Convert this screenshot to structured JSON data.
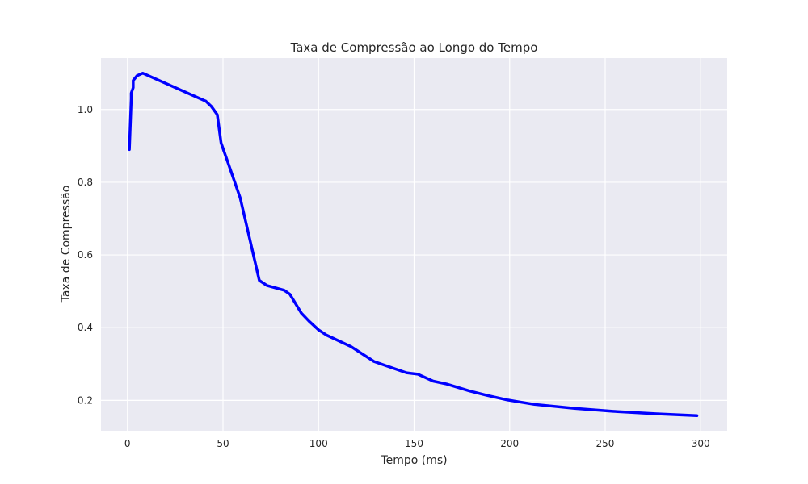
{
  "chart_data": {
    "type": "line",
    "title": "Taxa de Compressão ao Longo do Tempo",
    "xlabel": "Tempo (ms)",
    "ylabel": "Taxa de Compressão",
    "xlim": [
      -13.85,
      313.85
    ],
    "ylim": [
      0.1165,
      1.1415
    ],
    "xticks": [
      0,
      50,
      100,
      150,
      200,
      250,
      300
    ],
    "yticks": [
      0.2,
      0.4,
      0.6,
      0.8,
      1.0
    ],
    "xtick_labels": [
      "0",
      "50",
      "100",
      "150",
      "200",
      "250",
      "300"
    ],
    "ytick_labels": [
      "0.2",
      "0.4",
      "0.6",
      "0.8",
      "1.0"
    ],
    "grid": true,
    "legend": "none",
    "series": [
      {
        "color": "#0000ff",
        "x": [
          1,
          2,
          2,
          3,
          3,
          5,
          8,
          41,
          44,
          47,
          49,
          53,
          59,
          69,
          73,
          82,
          85,
          91,
          95,
          100,
          104,
          117,
          129,
          135,
          146,
          152,
          160,
          167,
          179,
          188,
          199,
          213,
          234,
          254,
          277,
          298
        ],
        "y": [
          0.89,
          1.03,
          1.045,
          1.06,
          1.08,
          1.093,
          1.1,
          1.023,
          1.008,
          0.986,
          0.908,
          0.848,
          0.757,
          0.53,
          0.516,
          0.503,
          0.492,
          0.44,
          0.418,
          0.394,
          0.38,
          0.348,
          0.307,
          0.296,
          0.276,
          0.272,
          0.253,
          0.245,
          0.226,
          0.214,
          0.201,
          0.189,
          0.178,
          0.17,
          0.163,
          0.158
        ]
      }
    ]
  }
}
